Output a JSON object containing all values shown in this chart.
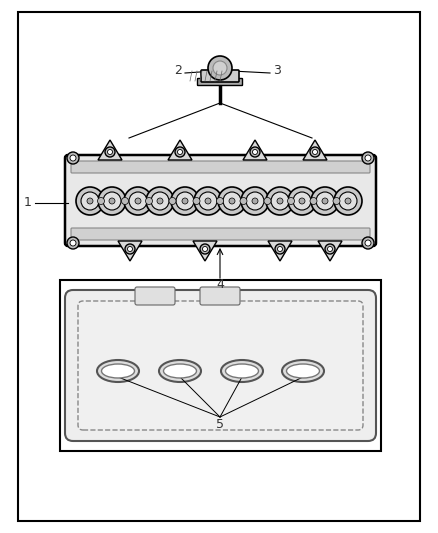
{
  "title": "",
  "bg_color": "#ffffff",
  "border_color": "#000000",
  "line_color": "#000000",
  "gray_light": "#cccccc",
  "gray_mid": "#999999",
  "gray_dark": "#555555",
  "label_1": "1",
  "label_2": "2",
  "label_3": "3",
  "label_4": "4",
  "label_5": "5",
  "figsize": [
    4.38,
    5.33
  ],
  "dpi": 100
}
